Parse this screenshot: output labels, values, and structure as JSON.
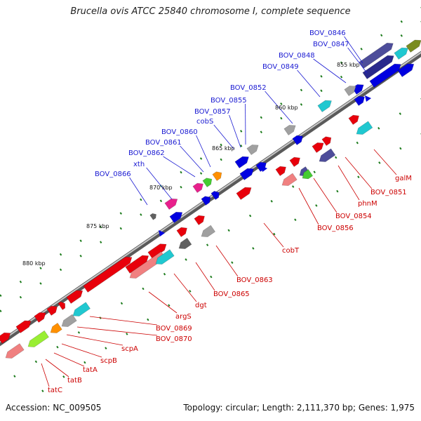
{
  "title": "Brucella ovis ATCC 25840 chromosome I, complete sequence",
  "footer": {
    "accession": "Accession: NC_009505",
    "summary": "Topology: circular; Length: 2,111,370 bp; Genes: 1,975"
  },
  "kbp_ticks": [
    "855 kbp",
    "860 kbp",
    "865 kbp",
    "870 kbp",
    "875 kbp",
    "880 kbp"
  ],
  "labels_top": [
    "BOV_0846",
    "BOV_0847",
    "BOV_0848",
    "BOV_0849",
    "BOV_0852",
    "BOV_0855",
    "BOV_0857",
    "cobS",
    "BOV_0860",
    "BOV_0861",
    "BOV_0862",
    "xth",
    "BOV_0866"
  ],
  "labels_bottom": [
    "galM",
    "BOV_0851",
    "phnM",
    "BOV_0854",
    "BOV_0856",
    "cobT",
    "BOV_0863",
    "BOV_0865",
    "dgt",
    "argS",
    "BOV_0869",
    "BOV_0870",
    "scpA",
    "scpB",
    "tatA",
    "tatB",
    "tatC"
  ],
  "colors": {
    "red": "#e8000b",
    "blue": "#0000e0",
    "navy": "#28288c",
    "slate": "#4d4d9a",
    "cyan": "#20c8d0",
    "magenta": "#e8208c",
    "orange": "#ff9000",
    "green": "#44cc30",
    "lime": "#99ee33",
    "gray": "#a0a0a0",
    "darkgray": "#606060",
    "olive": "#7a8c20",
    "salmon": "#f08080",
    "ticks": "#1a7a1a",
    "backbone": "#8c8c8c"
  }
}
